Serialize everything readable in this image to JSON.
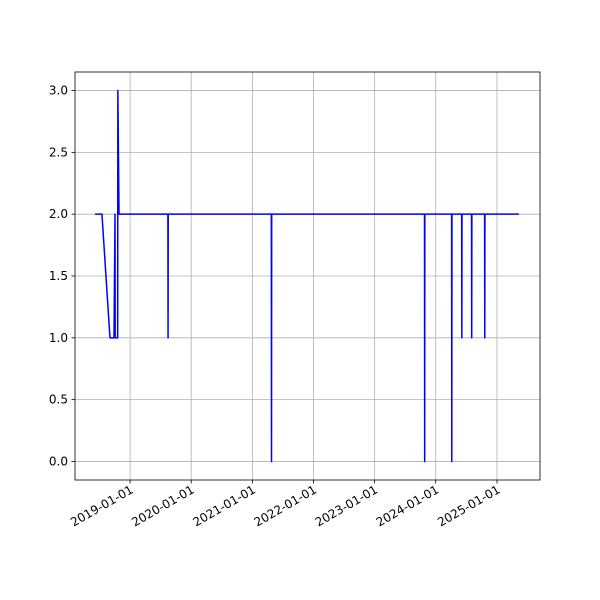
{
  "chart_data": {
    "type": "line",
    "x": [
      "2018-06-06",
      "2018-07-17",
      "2018-09-03",
      "2018-09-27",
      "2018-10-03",
      "2018-10-04",
      "2018-10-19",
      "2018-10-20",
      "2018-10-27",
      "2019-08-15",
      "2019-08-16",
      "2019-08-17",
      "2021-04-24",
      "2021-04-25",
      "2021-04-26",
      "2023-10-26",
      "2023-10-27",
      "2023-10-28",
      "2024-04-05",
      "2024-04-06",
      "2024-04-07",
      "2024-06-04",
      "2024-06-05",
      "2024-06-06",
      "2024-08-02",
      "2024-08-03",
      "2024-08-04",
      "2024-10-19",
      "2024-10-20",
      "2024-10-21",
      "2025-05-12"
    ],
    "values": [
      2,
      2,
      1,
      1,
      2,
      1,
      1,
      3,
      2,
      2,
      1,
      2,
      2,
      0,
      2,
      2,
      0,
      2,
      2,
      0,
      2,
      2,
      1,
      2,
      2,
      1,
      2,
      2,
      1,
      2,
      2
    ],
    "color": "#0000ff",
    "xlim": [
      "2018-02-06",
      "2025-09-15"
    ],
    "xticks": [
      "2019-01-01",
      "2020-01-01",
      "2021-01-01",
      "2022-01-01",
      "2023-01-01",
      "2024-01-01",
      "2025-01-01"
    ],
    "ylim": [
      -0.15,
      3.15
    ],
    "yticks": [
      {
        "value": 0,
        "label": "0.0"
      },
      0.5,
      {
        "value": 1,
        "label": "1.0"
      },
      1.5,
      {
        "value": 2,
        "label": "2.0"
      },
      2.5,
      {
        "value": 3,
        "label": "3.0"
      }
    ],
    "grid": true
  }
}
